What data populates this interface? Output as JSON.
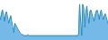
{
  "chart_data": {
    "type": "area",
    "values": [
      22,
      28,
      32,
      26,
      20,
      28,
      30,
      24,
      18,
      22,
      26,
      20,
      14,
      8,
      18,
      16,
      14,
      12,
      10,
      8,
      7,
      6,
      6,
      5,
      5,
      5,
      5,
      6,
      5,
      5,
      5,
      5,
      5,
      5,
      5,
      5,
      5,
      5,
      5,
      5,
      5,
      5,
      5,
      5,
      5,
      5,
      5,
      5,
      5,
      5,
      5,
      5,
      5,
      5,
      5,
      5,
      5,
      5,
      5,
      5,
      5,
      5,
      5,
      5,
      5,
      5,
      5,
      5,
      5,
      5,
      5,
      5,
      5,
      5,
      5,
      5,
      6,
      38,
      20,
      5,
      38,
      34,
      14,
      28,
      36,
      26,
      18,
      30,
      32,
      28,
      24,
      20,
      26,
      30,
      32,
      28,
      22,
      28,
      32,
      26,
      22,
      26,
      28,
      24,
      20,
      16
    ],
    "colors": [
      "#74b9e7",
      "#2b8cbe"
    ],
    "ylim": [
      0,
      42
    ],
    "grid": false,
    "tick_labels": false
  }
}
